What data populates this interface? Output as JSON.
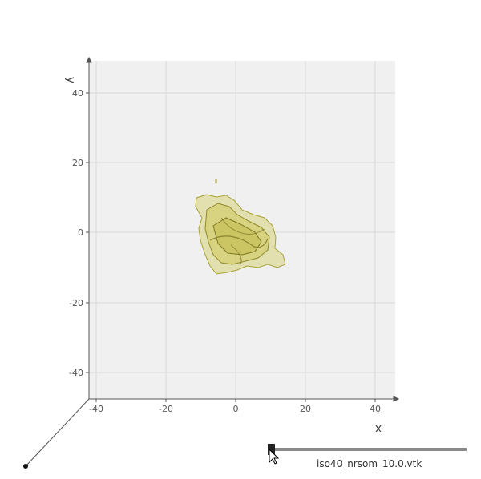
{
  "scene": {
    "axes": {
      "x_label": "x",
      "y_label": "y",
      "x_ticks": [
        "-40",
        "-20",
        "0",
        "20",
        "40"
      ],
      "y_ticks": [
        "40",
        "20",
        "0",
        "-20",
        "-40"
      ],
      "x_range": [
        -42,
        46
      ],
      "y_range": [
        -48,
        49
      ],
      "grid": true
    },
    "colors": {
      "plot_background": "#f0f0f0",
      "grid": "#d9d9d9",
      "axis": "#555555",
      "surface_fill": "#d8d47a",
      "surface_edge": "#9a9430",
      "slider_track": "#8a8a8a",
      "slider_handle": "#222222"
    }
  },
  "slider": {
    "file_label": "iso40_nrsom_10.0.vtk",
    "value_fraction": 0.0
  }
}
